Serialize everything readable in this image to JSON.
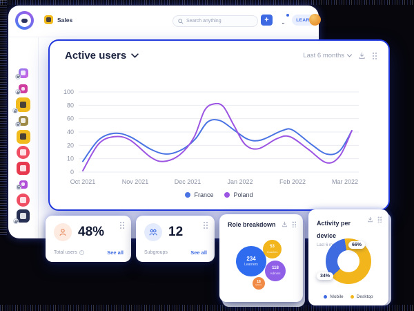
{
  "colors": {
    "accent_blue": "#3d6ae3",
    "card_border_blue": "#2038dd",
    "france": "#4a73e3",
    "poland": "#9c55e2",
    "yellow": "#f2b61c",
    "donut_blue": "#3e6be0"
  },
  "topbar": {
    "app_label": "Sales",
    "search_placeholder": "Search anything",
    "learn_label": "LEARN"
  },
  "sidebar": {
    "items": [
      {
        "name": "app-gradient-purple",
        "color": "linear-gradient(135deg,#8a7bf0,#d05fe0)",
        "size": 14,
        "round": false,
        "glyph": "light",
        "locked": true
      },
      {
        "name": "app-magenta",
        "color": "#cf3d9e",
        "size": 13,
        "round": false,
        "glyph": "light",
        "locked": true
      },
      {
        "name": "app-yellow-camera",
        "color": "#f2bb1d",
        "size": 21,
        "round": false,
        "glyph": "dark",
        "locked": true
      },
      {
        "name": "app-gold",
        "color": "#9d8b45",
        "size": 14,
        "round": false,
        "glyph": "light",
        "locked": true
      },
      {
        "name": "app-yellow-swirl",
        "color": "#f2bb1d",
        "size": 20,
        "round": false,
        "glyph": "dark",
        "locked": false
      },
      {
        "name": "app-red-circle",
        "color": "#ef4e63",
        "size": 19,
        "round": true,
        "glyph": "light",
        "locked": false
      },
      {
        "name": "app-red-square",
        "color": "#e83a4e",
        "size": 19,
        "round": false,
        "glyph": "light",
        "locked": false
      },
      {
        "name": "app-purple-small",
        "color": "#b14fd8",
        "size": 12,
        "round": false,
        "glyph": "light",
        "locked": true
      },
      {
        "name": "app-pink-circle",
        "color": "#ef4e63",
        "size": 19,
        "round": true,
        "glyph": "light",
        "locked": false
      },
      {
        "name": "app-navy",
        "color": "#273052",
        "size": 19,
        "round": false,
        "glyph": "light",
        "locked": true
      }
    ]
  },
  "stats": [
    {
      "value": "48%",
      "label": "Total users",
      "action": "See all",
      "icon": "person",
      "icon_bg": "#fdeae0",
      "icon_color": "#e8875a"
    },
    {
      "value": "12",
      "label": "Subgroups",
      "action": "See all",
      "icon": "people",
      "icon_bg": "#e3ebfc",
      "icon_color": "#3d6ae3"
    }
  ],
  "activity": {
    "labels": {
      "desktop": "66%",
      "mobile": "34%"
    }
  },
  "chart_data": [
    {
      "type": "line",
      "title": "Active users",
      "period": "Last 6 months",
      "x_labels": [
        "Oct 2021",
        "Nov 2021",
        "Dec 2021",
        "Jan 2022",
        "Feb 2022",
        "Mar 2022"
      ],
      "y_ticks": [
        100,
        80,
        60,
        40,
        20,
        10,
        0
      ],
      "y_scale_note": "non-linear axis: ticks 0,10,20,40,60,80,100 evenly spaced",
      "grid": true,
      "legend_position": "bottom",
      "series": [
        {
          "name": "France",
          "color": "#4a73e3",
          "points": [
            [
              0,
              8
            ],
            [
              0.3,
              28
            ],
            [
              0.6,
              38
            ],
            [
              0.9,
              33
            ],
            [
              1.3,
              17
            ],
            [
              1.6,
              13.5
            ],
            [
              1.9,
              17
            ],
            [
              2.15,
              30
            ],
            [
              2.38,
              55
            ],
            [
              2.62,
              57
            ],
            [
              2.9,
              42
            ],
            [
              3.15,
              29
            ],
            [
              3.4,
              28
            ],
            [
              3.8,
              42
            ],
            [
              4.0,
              43
            ],
            [
              4.35,
              22
            ],
            [
              4.65,
              13.5
            ],
            [
              4.9,
              16
            ],
            [
              5.13,
              42
            ]
          ]
        },
        {
          "name": "Poland",
          "color": "#9c55e2",
          "points": [
            [
              0,
              1
            ],
            [
              0.3,
              22
            ],
            [
              0.6,
              33
            ],
            [
              0.9,
              28
            ],
            [
              1.3,
              11
            ],
            [
              1.55,
              8
            ],
            [
              1.85,
              13
            ],
            [
              2.12,
              32
            ],
            [
              2.32,
              72
            ],
            [
              2.5,
              82
            ],
            [
              2.68,
              78
            ],
            [
              2.88,
              50
            ],
            [
              3.1,
              21
            ],
            [
              3.35,
              17.5
            ],
            [
              3.7,
              30
            ],
            [
              3.95,
              33
            ],
            [
              4.3,
              17
            ],
            [
              4.65,
              7
            ],
            [
              4.9,
              12
            ],
            [
              5.13,
              42
            ]
          ]
        }
      ]
    },
    {
      "type": "bubble",
      "title": "Role breakdown",
      "bubbles": [
        {
          "label": "Learners",
          "value": "234",
          "color": "#2e6bee",
          "x": 24,
          "y": 46,
          "size": 44,
          "vf": 8,
          "lf": 5
        },
        {
          "label": "Coaches",
          "value": "53",
          "color": "#f2b61c",
          "x": 63,
          "y": 37,
          "size": 27,
          "vf": 6,
          "lf": 4
        },
        {
          "label": "Admins",
          "value": "118",
          "color": "#8f5fe8",
          "x": 66,
          "y": 67,
          "size": 30,
          "vf": 6,
          "lf": 4.5
        },
        {
          "label": "Editors",
          "value": "18",
          "color": "#f18a44",
          "x": 48,
          "y": 91,
          "size": 18,
          "vf": 5,
          "lf": 3
        }
      ]
    },
    {
      "type": "pie",
      "title": "Activity per device",
      "period": "Last 6 months",
      "segments": [
        {
          "label": "Desktop",
          "value": 66,
          "color": "#f2b61c"
        },
        {
          "label": "Mobile",
          "value": 34,
          "color": "#3e6be0"
        }
      ],
      "legend_order": [
        "Mobile",
        "Desktop"
      ]
    }
  ]
}
